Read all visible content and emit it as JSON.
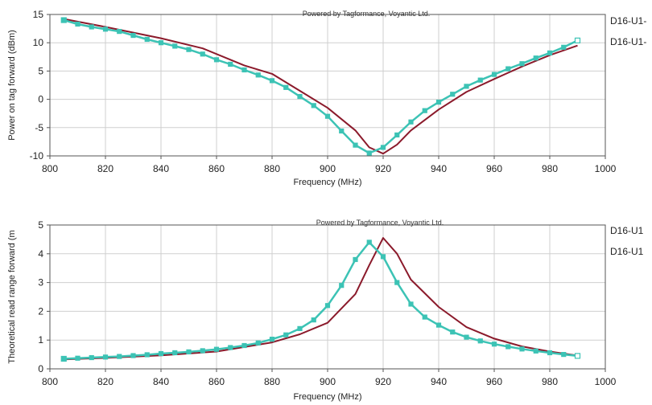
{
  "chart_data": [
    {
      "type": "line",
      "watermark": "Powered by Tagformance, Voyantic Ltd.",
      "xlabel": "Frequency (MHz)",
      "ylabel": "Power on tag forward (dBm)",
      "xlim": [
        800,
        1000
      ],
      "ylim": [
        -10,
        15
      ],
      "x_ticks": [
        800,
        820,
        840,
        860,
        880,
        900,
        920,
        940,
        960,
        980,
        1000
      ],
      "y_ticks": [
        -10,
        -5,
        0,
        5,
        10,
        15
      ],
      "x_tick_labels": [
        "800",
        "820",
        "840",
        "860",
        "880",
        "900",
        "920",
        "940",
        "960",
        "980",
        "1000"
      ],
      "y_tick_labels": [
        "-10",
        "-5",
        "0",
        "5",
        "10",
        "15"
      ],
      "grid": true,
      "legend_position": "right",
      "series": [
        {
          "name": "D16-U1-",
          "color": "#8b1a2b",
          "markers": false,
          "x": [
            805,
            820,
            840,
            855,
            870,
            880,
            890,
            900,
            910,
            915,
            920,
            925,
            930,
            940,
            950,
            960,
            970,
            980,
            990
          ],
          "y": [
            14.2,
            12.8,
            10.8,
            9.0,
            6.0,
            4.5,
            1.5,
            -1.5,
            -5.5,
            -8.5,
            -9.6,
            -8.0,
            -5.5,
            -1.8,
            1.3,
            3.6,
            5.8,
            7.8,
            9.5
          ]
        },
        {
          "name": "D16-U1-",
          "color": "#3cc3b5",
          "markers": true,
          "x": [
            805,
            810,
            815,
            820,
            825,
            830,
            835,
            840,
            845,
            850,
            855,
            860,
            865,
            870,
            875,
            880,
            885,
            890,
            895,
            900,
            905,
            910,
            915,
            920,
            925,
            930,
            935,
            940,
            945,
            950,
            955,
            960,
            965,
            970,
            975,
            980,
            985,
            990
          ],
          "y": [
            14.0,
            13.3,
            12.8,
            12.4,
            12.0,
            11.3,
            10.6,
            10.0,
            9.4,
            8.8,
            8.0,
            7.0,
            6.2,
            5.2,
            4.3,
            3.3,
            2.1,
            0.5,
            -1.1,
            -3.0,
            -5.6,
            -8.1,
            -9.5,
            -8.5,
            -6.3,
            -4.0,
            -2.0,
            -0.5,
            0.9,
            2.3,
            3.4,
            4.4,
            5.4,
            6.3,
            7.3,
            8.2,
            9.2,
            10.4
          ]
        }
      ]
    },
    {
      "type": "line",
      "watermark": "Powered by Tagformance, Voyantic Ltd.",
      "xlabel": "Frequency (MHz)",
      "ylabel": "Theoretical read range forward (m",
      "xlim": [
        800,
        1000
      ],
      "ylim": [
        0,
        5
      ],
      "x_ticks": [
        800,
        820,
        840,
        860,
        880,
        900,
        920,
        940,
        960,
        980,
        1000
      ],
      "y_ticks": [
        0,
        1,
        2,
        3,
        4,
        5
      ],
      "x_tick_labels": [
        "800",
        "820",
        "840",
        "860",
        "880",
        "900",
        "920",
        "940",
        "960",
        "980",
        "1000"
      ],
      "y_tick_labels": [
        "0",
        "1",
        "2",
        "3",
        "4",
        "5"
      ],
      "grid": true,
      "legend_position": "right",
      "series": [
        {
          "name": "D16-U1",
          "color": "#8b1a2b",
          "markers": false,
          "x": [
            805,
            820,
            840,
            860,
            880,
            890,
            900,
            910,
            915,
            920,
            925,
            930,
            940,
            950,
            960,
            970,
            980,
            990
          ],
          "y": [
            0.33,
            0.38,
            0.47,
            0.6,
            0.92,
            1.2,
            1.6,
            2.6,
            3.6,
            4.55,
            4.0,
            3.1,
            2.15,
            1.45,
            1.05,
            0.78,
            0.6,
            0.46
          ]
        },
        {
          "name": "D16-U1",
          "color": "#3cc3b5",
          "markers": true,
          "x": [
            805,
            810,
            815,
            820,
            825,
            830,
            835,
            840,
            845,
            850,
            855,
            860,
            865,
            870,
            875,
            880,
            885,
            890,
            895,
            900,
            905,
            910,
            915,
            920,
            925,
            930,
            935,
            940,
            945,
            950,
            955,
            960,
            965,
            970,
            975,
            980,
            985,
            990
          ],
          "y": [
            0.35,
            0.37,
            0.39,
            0.41,
            0.43,
            0.46,
            0.49,
            0.53,
            0.56,
            0.59,
            0.63,
            0.68,
            0.74,
            0.81,
            0.9,
            1.03,
            1.18,
            1.4,
            1.7,
            2.2,
            2.9,
            3.8,
            4.4,
            3.9,
            3.0,
            2.25,
            1.8,
            1.52,
            1.28,
            1.1,
            0.97,
            0.86,
            0.77,
            0.69,
            0.62,
            0.56,
            0.5,
            0.45
          ]
        }
      ]
    }
  ]
}
